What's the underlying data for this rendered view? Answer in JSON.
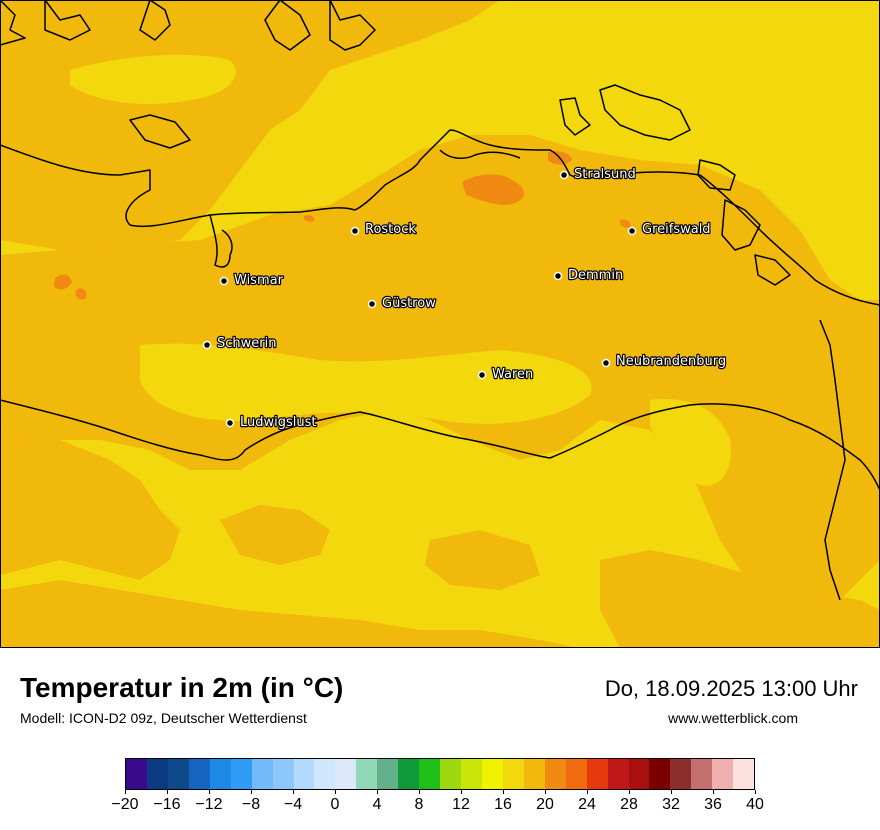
{
  "title": "Temperatur in 2m (in °C)",
  "model": "Modell: ICON-D2 09z, Deutscher Wetterdienst",
  "datetime": "Do, 18.09.2025 13:00 Uhr",
  "website": "www.wetterblick.com",
  "colors": {
    "sea_warm": "#f2d80c",
    "land_main": "#f2b90d",
    "hot_patch": "#f08a12"
  },
  "cities": [
    {
      "name": "Stralsund"
    },
    {
      "name": "Rostock"
    },
    {
      "name": "Greifswald"
    },
    {
      "name": "Wismar"
    },
    {
      "name": "Demmin"
    },
    {
      "name": "Güstrow"
    },
    {
      "name": "Schwerin"
    },
    {
      "name": "Neubrandenburg"
    },
    {
      "name": "Waren"
    },
    {
      "name": "Ludwigslust"
    }
  ],
  "legend": {
    "colors": [
      "#3a0a8c",
      "#0b3a82",
      "#0e4a8a",
      "#1565c0",
      "#1e88e5",
      "#2f9df5",
      "#72bafa",
      "#8ec8fb",
      "#b3dafc",
      "#cfe6fd",
      "#dce9fb",
      "#90d8b8",
      "#63b08a",
      "#0f9a3a",
      "#1fbf1a",
      "#9ed80f",
      "#c9e60a",
      "#f0f200",
      "#f2d80c",
      "#f2b90d",
      "#f08a12",
      "#f06a10",
      "#e63a0e",
      "#c01818",
      "#a81010",
      "#7a0000",
      "#8b2e2e",
      "#c47070",
      "#f0b0b0",
      "#fde0e0"
    ],
    "ticks": [
      "−20",
      "−16",
      "−12",
      "−8",
      "−4",
      "0",
      "4",
      "8",
      "12",
      "16",
      "20",
      "24",
      "28",
      "32",
      "36",
      "40"
    ]
  }
}
